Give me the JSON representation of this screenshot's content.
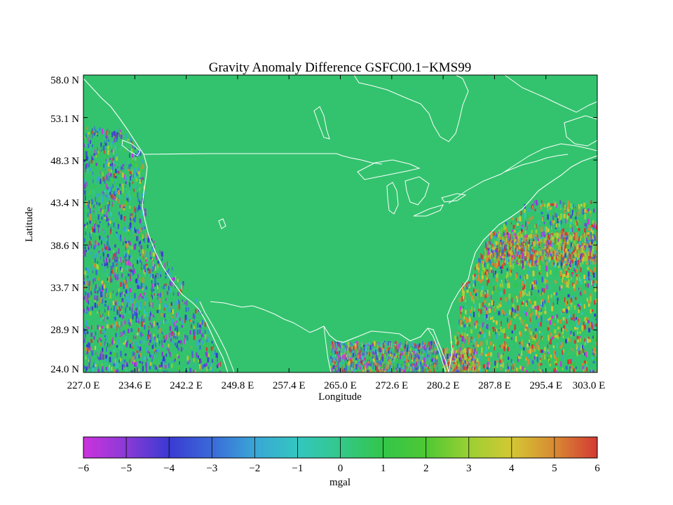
{
  "map": {
    "title": "Gravity Anomaly Difference GSFC00.1−KMS99",
    "xlabel": "Longitude",
    "ylabel": "Latitude",
    "x_ticks": [
      "227.0 E",
      "234.6 E",
      "242.2 E",
      "249.8 E",
      "257.4 E",
      "265.0 E",
      "272.6 E",
      "280.2 E",
      "287.8 E",
      "295.4 E",
      "303.0 E"
    ],
    "y_ticks": [
      "24.0 N",
      "28.9 N",
      "33.7 N",
      "38.6 N",
      "43.4 N",
      "48.3 N",
      "53.1 N",
      "58.0 N"
    ],
    "lon_range": [
      227.0,
      303.0
    ],
    "lat_range": [
      24.0,
      58.0
    ],
    "land_color": "#33c36e",
    "coastline_color": "#ffffff"
  },
  "colorbar": {
    "label": "mgal",
    "tick_labels": [
      "−6",
      "−5",
      "−4",
      "−3",
      "−2",
      "−1",
      "0",
      "1",
      "2",
      "3",
      "4",
      "5",
      "6"
    ],
    "range": [
      -6,
      6
    ],
    "colors": [
      "#cc33dd",
      "#8a3ad6",
      "#3a3ad2",
      "#3a6ad8",
      "#3aa6d6",
      "#33c6c0",
      "#33c88a",
      "#33c54a",
      "#4ec833",
      "#9ad033",
      "#d4c833",
      "#d88a33",
      "#d43a33"
    ]
  }
}
